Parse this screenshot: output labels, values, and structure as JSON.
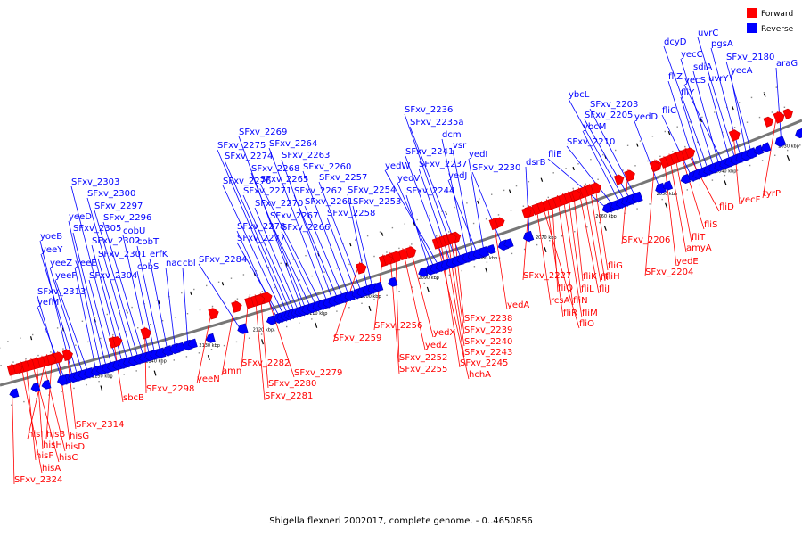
{
  "legend": [
    {
      "label": "Forward",
      "color": "#ff0000"
    },
    {
      "label": "Reverse",
      "color": "#0000ff"
    }
  ],
  "caption": "Shigella flexneri 2002017, complete genome. - 0..4650856",
  "colors": {
    "forward": "#ff0000",
    "forward_dark": "#c80000",
    "reverse": "#0000ff",
    "reverse_dark": "#0000b0",
    "backbone": "#777777"
  },
  "ticks": [
    "2030 kbp",
    "2040 kbp",
    "2050 kbp",
    "2060 kbp",
    "2070 kbp",
    "2080 kbp",
    "2090 kbp",
    "2100 kbp",
    "2110 kbp",
    "2120 kbp",
    "2130 kbp",
    "2140 kbp",
    "2150 kbp"
  ],
  "reverse_genes": [
    "yefM",
    "SFxv_2313",
    "yoeB",
    "yeeY",
    "yeeZ",
    "yeeF",
    "yeeE",
    "yeeD",
    "SFxv_2305",
    "SFxv_2304",
    "SFxv_2303",
    "SFxv_2302",
    "SFxv_2301",
    "SFxv_2300",
    "SFxv_2297",
    "SFxv_2296",
    "cobU",
    "cobS",
    "cobT",
    "erfK",
    "nac",
    "cbl",
    "SFxv_2284",
    "SFxv_2278",
    "SFxv_2277",
    "SFxv_2276",
    "SFxv_2275",
    "SFxv_2274",
    "SFxv_2271",
    "SFxv_2270",
    "SFxv_2269",
    "SFxv_2268",
    "SFxv_2267",
    "SFxv_2266",
    "SFxv_2265",
    "SFxv_2264",
    "SFxv_2263",
    "SFxv_2262",
    "SFxv_2261",
    "SFxv_2260",
    "SFxv_2258",
    "SFxv_2257",
    "SFxv_2254",
    "SFxv_2253",
    "SFxv_2244",
    "yedV",
    "yedW",
    "SFxv_2241",
    "SFxv_2237",
    "SFxv_2236",
    "SFxv_2235a",
    "dcm",
    "vsr",
    "yedJ",
    "yedI",
    "SFxv_2230",
    "dsrB",
    "fliE",
    "SFxv_2210",
    "ybcM",
    "ybcL",
    "SFxv_2205",
    "SFxv_2203",
    "yedD",
    "fliC",
    "fliZ",
    "fliY",
    "dcyD",
    "yecC",
    "sdiA",
    "yecS",
    "uvrY",
    "uvrC",
    "pgsA",
    "yecA",
    "SFxv_2180",
    "araG"
  ],
  "forward_genes": [
    "SFxv_2324",
    "hisA",
    "hisF",
    "hisC",
    "hisH",
    "hisD",
    "hisI",
    "hisB",
    "hisG",
    "SFxv_2314",
    "sbcB",
    "SFxv_2298",
    "yeeN",
    "amn",
    "SFxv_2282",
    "SFxv_2281",
    "SFxv_2280",
    "SFxv_2279",
    "SFxv_2259",
    "SFxv_2256",
    "SFxv_2255",
    "SFxv_2252",
    "yedZ",
    "yedX",
    "hchA",
    "SFxv_2245",
    "SFxv_2243",
    "SFxv_2240",
    "SFxv_2239",
    "SFxv_2238",
    "yedA",
    "SFxv_2227",
    "rcsA",
    "fliO",
    "fliR",
    "fliQ",
    "fliN",
    "fliM",
    "fliL",
    "fliK",
    "fliJ",
    "fliI",
    "fliH",
    "fliG",
    "SFxv_2206",
    "SFxv_2204",
    "yedE",
    "amyA",
    "fliT",
    "fliS",
    "fliD",
    "yecF",
    "tyrP"
  ]
}
